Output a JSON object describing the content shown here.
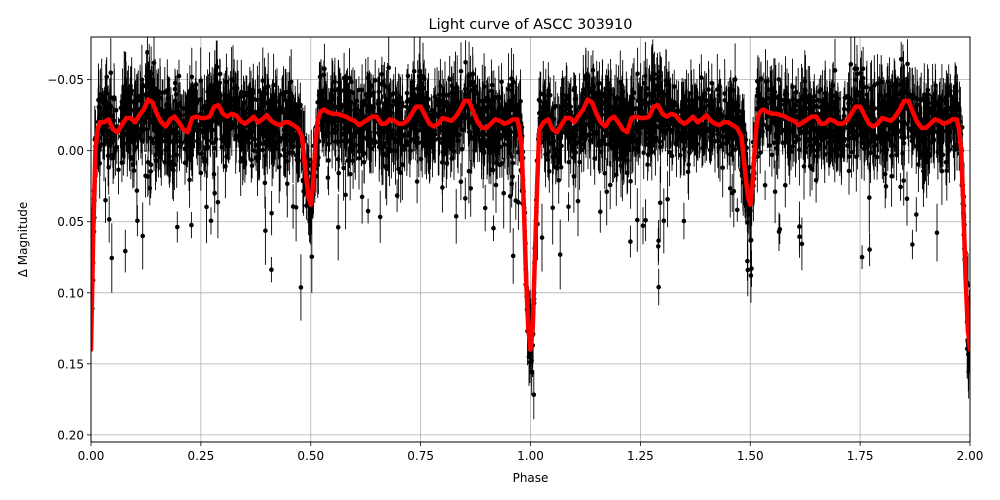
{
  "chart_data": {
    "type": "scatter",
    "title": "Light curve of ASCC 303910",
    "xlabel": "Phase",
    "ylabel": "Δ Magnitude",
    "xlim": [
      0.0,
      2.0
    ],
    "ylim": [
      0.205,
      -0.08
    ],
    "y_inverted": true,
    "grid": true,
    "xticks": [
      0.0,
      0.25,
      0.5,
      0.75,
      1.0,
      1.25,
      1.5,
      1.75,
      2.0
    ],
    "xtick_labels": [
      "0.00",
      "0.25",
      "0.50",
      "0.75",
      "1.00",
      "1.25",
      "1.50",
      "1.75",
      "2.00"
    ],
    "yticks": [
      -0.05,
      0.0,
      0.05,
      0.1,
      0.15,
      0.2
    ],
    "ytick_labels": [
      "−0.05",
      "0.00",
      "0.05",
      "0.10",
      "0.15",
      "0.20"
    ],
    "colors": {
      "points": "#000000",
      "model": "#ff0000",
      "grid": "#b0b0b0"
    },
    "series": [
      {
        "kind": "errorbar-points",
        "style": "black points with vertical error bars (~2 points per 0.001 phase, scatter ~±0.03 mag, error bars ~0.02 mag)"
      },
      {
        "kind": "model-line",
        "x": [
          0.0,
          0.005,
          0.01,
          0.015,
          0.02,
          0.03,
          0.04,
          0.05,
          0.06,
          0.07,
          0.08,
          0.09,
          0.1,
          0.11,
          0.12,
          0.13,
          0.14,
          0.15,
          0.16,
          0.17,
          0.18,
          0.19,
          0.2,
          0.21,
          0.22,
          0.23,
          0.24,
          0.25,
          0.26,
          0.27,
          0.28,
          0.29,
          0.3,
          0.31,
          0.32,
          0.33,
          0.34,
          0.35,
          0.36,
          0.37,
          0.38,
          0.39,
          0.4,
          0.41,
          0.42,
          0.43,
          0.44,
          0.45,
          0.46,
          0.47,
          0.48,
          0.485,
          0.49,
          0.495,
          0.5,
          0.505,
          0.51,
          0.515,
          0.52,
          0.525,
          0.53,
          0.54,
          0.55,
          0.56,
          0.57,
          0.58,
          0.59,
          0.6,
          0.61,
          0.62,
          0.63,
          0.64,
          0.65,
          0.66,
          0.67,
          0.68,
          0.69,
          0.7,
          0.71,
          0.72,
          0.73,
          0.74,
          0.75,
          0.76,
          0.77,
          0.78,
          0.79,
          0.8,
          0.81,
          0.82,
          0.83,
          0.84,
          0.85,
          0.86,
          0.87,
          0.88,
          0.89,
          0.9,
          0.91,
          0.92,
          0.93,
          0.94,
          0.95,
          0.96,
          0.97,
          0.975,
          0.98,
          0.985,
          0.99,
          0.995,
          1.0,
          1.005,
          1.01,
          1.015,
          1.02,
          1.03,
          1.04,
          1.05,
          1.06,
          1.07,
          1.08,
          1.09,
          1.1,
          1.11,
          1.12,
          1.13,
          1.14,
          1.15,
          1.16,
          1.17,
          1.18,
          1.19,
          1.2,
          1.21,
          1.22,
          1.23,
          1.24,
          1.25,
          1.26,
          1.27,
          1.28,
          1.29,
          1.3,
          1.31,
          1.32,
          1.33,
          1.34,
          1.35,
          1.36,
          1.37,
          1.38,
          1.39,
          1.4,
          1.41,
          1.42,
          1.43,
          1.44,
          1.45,
          1.46,
          1.47,
          1.48,
          1.485,
          1.49,
          1.495,
          1.5,
          1.505,
          1.51,
          1.515,
          1.52,
          1.525,
          1.53,
          1.54,
          1.55,
          1.56,
          1.57,
          1.58,
          1.59,
          1.6,
          1.61,
          1.62,
          1.63,
          1.64,
          1.65,
          1.66,
          1.67,
          1.68,
          1.69,
          1.7,
          1.71,
          1.72,
          1.73,
          1.74,
          1.75,
          1.76,
          1.77,
          1.78,
          1.79,
          1.8,
          1.81,
          1.82,
          1.83,
          1.84,
          1.85,
          1.86,
          1.87,
          1.88,
          1.89,
          1.9,
          1.91,
          1.92,
          1.93,
          1.94,
          1.95,
          1.96,
          1.97,
          1.975,
          1.98,
          1.985,
          1.99,
          1.995,
          2.0
        ],
        "y": [
          0.14,
          0.06,
          0.0,
          -0.015,
          -0.02,
          -0.02,
          -0.022,
          -0.015,
          -0.013,
          -0.018,
          -0.023,
          -0.023,
          -0.02,
          -0.025,
          -0.029,
          -0.036,
          -0.034,
          -0.026,
          -0.02,
          -0.017,
          -0.022,
          -0.024,
          -0.02,
          -0.015,
          -0.013,
          -0.023,
          -0.024,
          -0.023,
          -0.023,
          -0.024,
          -0.031,
          -0.032,
          -0.026,
          -0.024,
          -0.026,
          -0.025,
          -0.021,
          -0.019,
          -0.021,
          -0.024,
          -0.02,
          -0.022,
          -0.025,
          -0.021,
          -0.019,
          -0.018,
          -0.02,
          -0.02,
          -0.018,
          -0.016,
          -0.01,
          0.005,
          0.02,
          0.033,
          0.038,
          0.025,
          0.0,
          -0.02,
          -0.026,
          -0.028,
          -0.029,
          -0.027,
          -0.026,
          -0.026,
          -0.025,
          -0.024,
          -0.022,
          -0.021,
          -0.018,
          -0.02,
          -0.022,
          -0.024,
          -0.024,
          -0.019,
          -0.019,
          -0.022,
          -0.021,
          -0.019,
          -0.019,
          -0.021,
          -0.026,
          -0.031,
          -0.031,
          -0.025,
          -0.019,
          -0.017,
          -0.019,
          -0.023,
          -0.022,
          -0.021,
          -0.024,
          -0.029,
          -0.035,
          -0.035,
          -0.027,
          -0.02,
          -0.016,
          -0.016,
          -0.019,
          -0.022,
          -0.021,
          -0.019,
          -0.02,
          -0.022,
          -0.022,
          -0.015,
          0.0,
          0.04,
          0.09,
          0.125,
          0.14,
          0.125,
          0.075,
          0.025,
          -0.015,
          -0.02,
          -0.022,
          -0.015,
          -0.013,
          -0.018,
          -0.023,
          -0.023,
          -0.02,
          -0.025,
          -0.029,
          -0.036,
          -0.034,
          -0.026,
          -0.02,
          -0.017,
          -0.022,
          -0.024,
          -0.02,
          -0.015,
          -0.013,
          -0.023,
          -0.024,
          -0.023,
          -0.023,
          -0.024,
          -0.031,
          -0.032,
          -0.026,
          -0.024,
          -0.026,
          -0.025,
          -0.021,
          -0.019,
          -0.021,
          -0.024,
          -0.02,
          -0.022,
          -0.025,
          -0.021,
          -0.019,
          -0.018,
          -0.02,
          -0.02,
          -0.018,
          -0.016,
          -0.01,
          0.005,
          0.02,
          0.033,
          0.038,
          0.025,
          0.0,
          -0.02,
          -0.026,
          -0.028,
          -0.029,
          -0.027,
          -0.026,
          -0.026,
          -0.025,
          -0.024,
          -0.022,
          -0.021,
          -0.018,
          -0.02,
          -0.022,
          -0.024,
          -0.024,
          -0.019,
          -0.019,
          -0.022,
          -0.021,
          -0.019,
          -0.019,
          -0.021,
          -0.026,
          -0.031,
          -0.031,
          -0.025,
          -0.019,
          -0.017,
          -0.019,
          -0.023,
          -0.022,
          -0.021,
          -0.024,
          -0.029,
          -0.035,
          -0.035,
          -0.027,
          -0.02,
          -0.016,
          -0.016,
          -0.019,
          -0.022,
          -0.021,
          -0.019,
          -0.02,
          -0.022,
          -0.022,
          -0.015,
          0.0,
          0.04,
          0.09,
          0.125,
          0.14
        ]
      }
    ]
  }
}
